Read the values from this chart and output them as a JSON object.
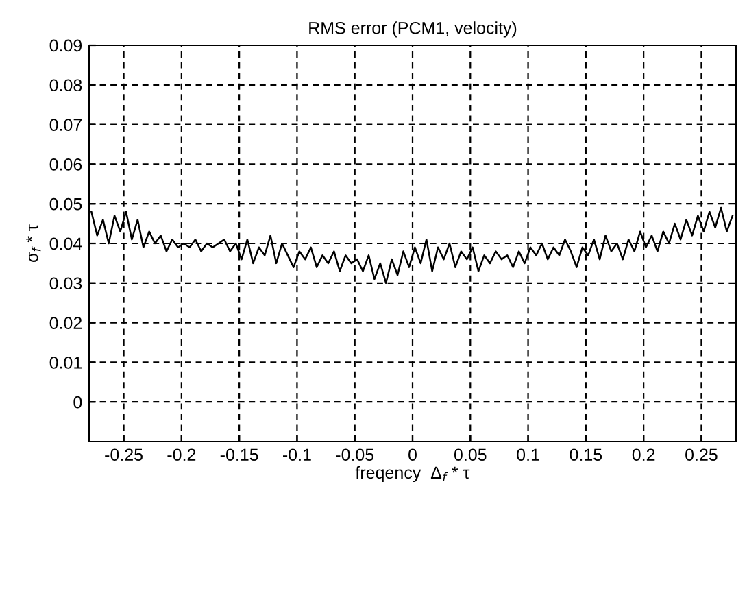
{
  "chart_data": {
    "type": "line",
    "title": "RMS error (PCM1, velocity)",
    "xlabel": "freqency  Δ$_{f}$ * τ",
    "ylabel": "σ$_{f}$ * τ",
    "xlim": [
      -0.28,
      0.28
    ],
    "ylim": [
      -0.01,
      0.09
    ],
    "xticks": [
      -0.25,
      -0.2,
      -0.15,
      -0.1,
      -0.05,
      0,
      0.05,
      0.1,
      0.15,
      0.2,
      0.25
    ],
    "yticks": [
      0,
      0.01,
      0.02,
      0.03,
      0.04,
      0.05,
      0.06,
      0.07,
      0.08,
      0.09
    ],
    "grid": true,
    "line_style": "solid",
    "marker": "none",
    "series": [
      {
        "color": "#000000",
        "x": [
          -0.278,
          -0.273,
          -0.268,
          -0.263,
          -0.258,
          -0.253,
          -0.248,
          -0.243,
          -0.238,
          -0.233,
          -0.228,
          -0.223,
          -0.218,
          -0.213,
          -0.208,
          -0.203,
          -0.198,
          -0.193,
          -0.188,
          -0.183,
          -0.178,
          -0.173,
          -0.168,
          -0.163,
          -0.158,
          -0.153,
          -0.148,
          -0.143,
          -0.138,
          -0.133,
          -0.128,
          -0.123,
          -0.118,
          -0.113,
          -0.108,
          -0.103,
          -0.098,
          -0.093,
          -0.088,
          -0.083,
          -0.078,
          -0.073,
          -0.068,
          -0.063,
          -0.058,
          -0.053,
          -0.048,
          -0.043,
          -0.038,
          -0.033,
          -0.028,
          -0.023,
          -0.018,
          -0.013,
          -0.008,
          -0.003,
          0.002,
          0.007,
          0.012,
          0.017,
          0.022,
          0.027,
          0.032,
          0.037,
          0.042,
          0.047,
          0.052,
          0.057,
          0.062,
          0.067,
          0.072,
          0.077,
          0.082,
          0.087,
          0.092,
          0.097,
          0.102,
          0.107,
          0.112,
          0.117,
          0.122,
          0.127,
          0.132,
          0.137,
          0.142,
          0.147,
          0.152,
          0.157,
          0.162,
          0.167,
          0.172,
          0.177,
          0.182,
          0.187,
          0.192,
          0.197,
          0.202,
          0.207,
          0.212,
          0.217,
          0.222,
          0.227,
          0.232,
          0.237,
          0.242,
          0.247,
          0.252,
          0.257,
          0.262,
          0.267,
          0.272,
          0.277
        ],
        "values": [
          0.048,
          0.042,
          0.046,
          0.04,
          0.047,
          0.043,
          0.048,
          0.041,
          0.046,
          0.039,
          0.043,
          0.04,
          0.042,
          0.038,
          0.041,
          0.039,
          0.04,
          0.039,
          0.041,
          0.038,
          0.04,
          0.039,
          0.04,
          0.041,
          0.038,
          0.04,
          0.036,
          0.041,
          0.035,
          0.039,
          0.037,
          0.042,
          0.035,
          0.04,
          0.037,
          0.034,
          0.038,
          0.036,
          0.039,
          0.034,
          0.037,
          0.035,
          0.038,
          0.033,
          0.037,
          0.035,
          0.036,
          0.033,
          0.037,
          0.031,
          0.035,
          0.03,
          0.036,
          0.032,
          0.038,
          0.034,
          0.039,
          0.035,
          0.041,
          0.033,
          0.039,
          0.036,
          0.04,
          0.034,
          0.038,
          0.036,
          0.039,
          0.033,
          0.037,
          0.035,
          0.038,
          0.036,
          0.037,
          0.034,
          0.038,
          0.035,
          0.039,
          0.037,
          0.04,
          0.036,
          0.039,
          0.037,
          0.041,
          0.038,
          0.034,
          0.039,
          0.037,
          0.041,
          0.036,
          0.042,
          0.038,
          0.04,
          0.036,
          0.041,
          0.038,
          0.043,
          0.039,
          0.042,
          0.038,
          0.043,
          0.04,
          0.045,
          0.041,
          0.046,
          0.042,
          0.047,
          0.043,
          0.048,
          0.044,
          0.049,
          0.043,
          0.047
        ]
      }
    ]
  }
}
